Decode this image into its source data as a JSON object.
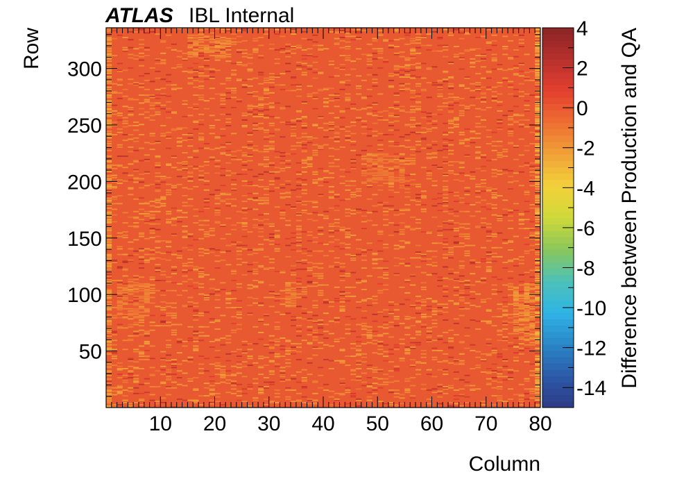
{
  "header": {
    "brand": "ATLAS",
    "subtitle": "IBL Internal"
  },
  "chart_data": {
    "type": "heatmap",
    "xlabel": "Column",
    "ylabel": "Row",
    "zlabel": "Difference between Production and QA",
    "xlim": [
      0,
      80
    ],
    "ylim": [
      0,
      336
    ],
    "zlim": [
      -15,
      4
    ],
    "x_ticks": [
      10,
      20,
      30,
      40,
      50,
      60,
      70,
      80
    ],
    "y_ticks": [
      50,
      100,
      150,
      200,
      250,
      300
    ],
    "z_ticks": [
      4,
      2,
      0,
      -2,
      -4,
      -6,
      -8,
      -10,
      -12,
      -14
    ],
    "grid": false,
    "colorscale": [
      "#2e3a87",
      "#2b5aa8",
      "#2a86c8",
      "#30b4e6",
      "#4cc1b8",
      "#8ac65a",
      "#cfd93a",
      "#f2d13a",
      "#f0a238",
      "#ee6f32",
      "#e4402f",
      "#b8302c",
      "#8a2525"
    ],
    "background_value": 0,
    "grid_size": [
      80,
      336
    ],
    "patches": [
      {
        "col_range": [
          16,
          23
        ],
        "row_range": [
          310,
          330
        ],
        "value": -1.4
      },
      {
        "col_range": [
          1,
          1
        ],
        "row_range": [
          1,
          336
        ],
        "value": -1.8
      },
      {
        "col_range": [
          80,
          80
        ],
        "row_range": [
          1,
          336
        ],
        "value": -2.4
      },
      {
        "col_range": [
          76,
          79
        ],
        "row_range": [
          60,
          110
        ],
        "value": -1.6
      },
      {
        "col_range": [
          3,
          8
        ],
        "row_range": [
          80,
          110
        ],
        "value": -1.1
      },
      {
        "col_range": [
          49,
          55
        ],
        "row_range": [
          200,
          225
        ],
        "value": -0.9
      },
      {
        "col_range": [
          34,
          35
        ],
        "row_range": [
          90,
          110
        ],
        "value": -1.2
      }
    ],
    "speckle_fraction_negative": 0.11,
    "speckle_fraction_positive": 0.035
  }
}
